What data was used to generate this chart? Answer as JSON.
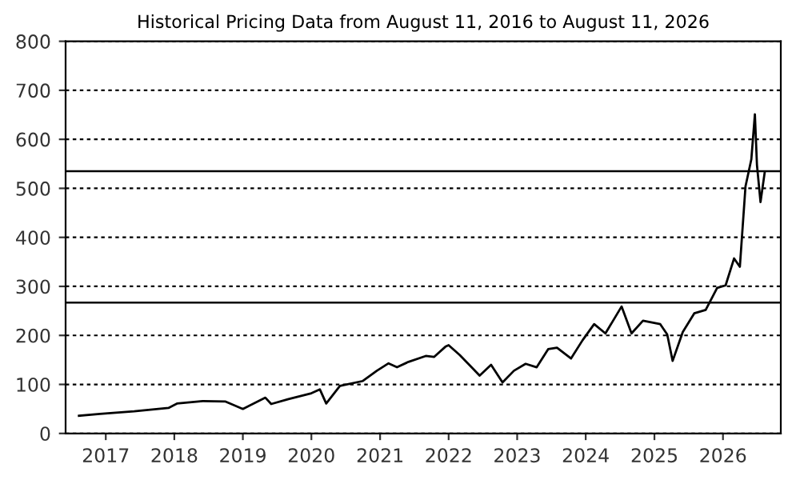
{
  "chart_data": {
    "type": "line",
    "title": "Historical Pricing Data from August 11, 2016 to August 11, 2026",
    "x": [
      "2016-08-11",
      "2016-12-01",
      "2017-06-01",
      "2017-12-01",
      "2018-01-15",
      "2018-06-01",
      "2018-10-01",
      "2019-01-01",
      "2019-05-01",
      "2019-06-01",
      "2019-09-01",
      "2020-01-01",
      "2020-02-15",
      "2020-03-20",
      "2020-06-01",
      "2020-10-01",
      "2020-12-15",
      "2021-02-15",
      "2021-04-01",
      "2021-06-01",
      "2021-09-01",
      "2021-10-15",
      "2021-12-15",
      "2022-01-01",
      "2022-03-01",
      "2022-05-01",
      "2022-06-15",
      "2022-08-15",
      "2022-10-15",
      "2022-12-15",
      "2023-02-15",
      "2023-04-15",
      "2023-06-15",
      "2023-08-01",
      "2023-10-15",
      "2023-12-15",
      "2024-02-15",
      "2024-04-15",
      "2024-07-10",
      "2024-09-01",
      "2024-11-01",
      "2025-02-01",
      "2025-03-10",
      "2025-04-08",
      "2025-06-01",
      "2025-08-01",
      "2025-10-01",
      "2025-12-01",
      "2026-01-15",
      "2026-03-01",
      "2026-04-01",
      "2026-05-01",
      "2026-06-01",
      "2026-06-20",
      "2026-07-01",
      "2026-07-20",
      "2026-08-11"
    ],
    "values": [
      36,
      40,
      45,
      52,
      61,
      66,
      65,
      50,
      73,
      60,
      70,
      82,
      90,
      61,
      97,
      107,
      128,
      143,
      135,
      146,
      158,
      156,
      177,
      180,
      160,
      136,
      118,
      140,
      104,
      128,
      142,
      135,
      172,
      175,
      153,
      190,
      223,
      204,
      259,
      204,
      230,
      223,
      202,
      148,
      207,
      245,
      252,
      297,
      302,
      357,
      340,
      504,
      559,
      651,
      548,
      472,
      532
    ],
    "color": "#000000",
    "xlim": [
      "2016-06-01",
      "2026-11-05"
    ],
    "xticks": [
      {
        "value": "2017-01-01",
        "label": "2017"
      },
      {
        "value": "2018-01-01",
        "label": "2018"
      },
      {
        "value": "2019-01-01",
        "label": "2019"
      },
      {
        "value": "2020-01-01",
        "label": "2020"
      },
      {
        "value": "2021-01-01",
        "label": "2021"
      },
      {
        "value": "2022-01-01",
        "label": "2022"
      },
      {
        "value": "2023-01-01",
        "label": "2023"
      },
      {
        "value": "2024-01-01",
        "label": "2024"
      },
      {
        "value": "2025-01-01",
        "label": "2025"
      },
      {
        "value": "2026-01-01",
        "label": "2026"
      }
    ],
    "ylim": [
      0,
      800
    ],
    "yticks": [
      0,
      100,
      200,
      300,
      400,
      500,
      600,
      700,
      800
    ],
    "grid": "y",
    "line_style": "solid",
    "marker": "none",
    "ref_lines": [
      {
        "axis": "y",
        "value": 535,
        "color": "#000000"
      },
      {
        "axis": "y",
        "value": 267,
        "color": "#000000"
      }
    ]
  }
}
